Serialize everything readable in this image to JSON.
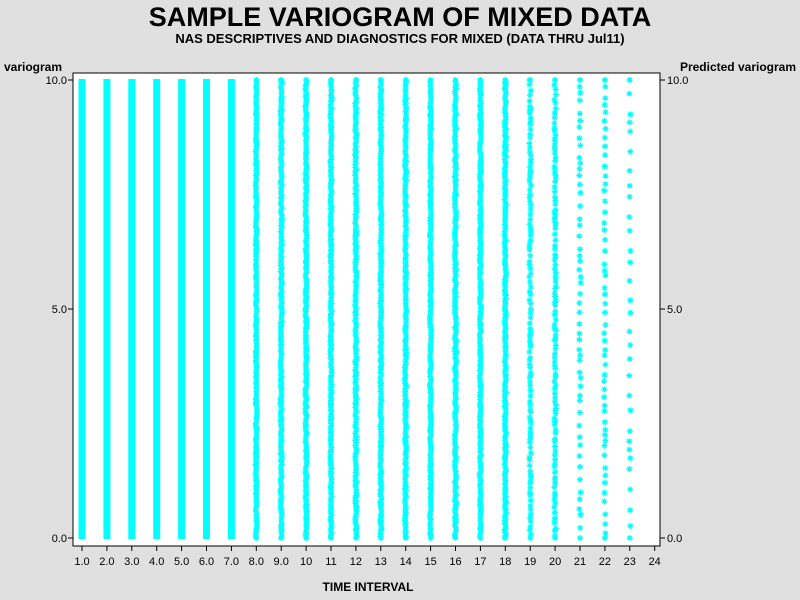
{
  "chart_data": {
    "type": "scatter",
    "title": "SAMPLE VARIOGRAM OF MIXED DATA",
    "subtitle": "NAS DESCRIPTIVES AND DIAGNOSTICS FOR MIXED (DATA THRU Jul11)",
    "xlabel": "TIME INTERVAL",
    "ylabel_left": "variogram",
    "ylabel_right": "Predicted variogram",
    "xlim": [
      1,
      24
    ],
    "ylim": [
      0,
      10
    ],
    "x_ticks": [
      "1.0",
      "2.0",
      "3.0",
      "4.0",
      "5.0",
      "6.0",
      "7.0",
      "8.0",
      "9.0",
      "10",
      "11",
      "12",
      "13",
      "14",
      "15",
      "16",
      "17",
      "18",
      "19",
      "20",
      "21",
      "22",
      "23",
      "24"
    ],
    "y_ticks_left": [
      "0.0",
      "5.0",
      "10.0"
    ],
    "y_ticks_right": [
      "0.0",
      "5.0",
      "10.0"
    ],
    "marker": "asterisk",
    "marker_color": "#00ffff",
    "grid": false,
    "series": [
      {
        "columns": [
          {
            "x": 1,
            "density": "solid"
          },
          {
            "x": 2,
            "density": "solid"
          },
          {
            "x": 3,
            "density": "solid"
          },
          {
            "x": 4,
            "density": "solid"
          },
          {
            "x": 5,
            "density": "solid"
          },
          {
            "x": 6,
            "density": "solid"
          },
          {
            "x": 7,
            "density": "solid"
          },
          {
            "x": 8,
            "density": "dense"
          },
          {
            "x": 9,
            "density": "dense"
          },
          {
            "x": 10,
            "density": "dense"
          },
          {
            "x": 11,
            "density": "dense"
          },
          {
            "x": 12,
            "density": "dense"
          },
          {
            "x": 13,
            "density": "dense"
          },
          {
            "x": 14,
            "density": "dense"
          },
          {
            "x": 15,
            "density": "dense"
          },
          {
            "x": 16,
            "density": "dense"
          },
          {
            "x": 17,
            "density": "dense"
          },
          {
            "x": 18,
            "density": "dense"
          },
          {
            "x": 19,
            "density": "medium"
          },
          {
            "x": 20,
            "density": "medium"
          },
          {
            "x": 21,
            "density": "sparse"
          },
          {
            "x": 22,
            "density": "sparse"
          },
          {
            "x": 23,
            "density": "very-sparse"
          }
        ],
        "y_range": [
          0,
          10
        ]
      }
    ]
  }
}
